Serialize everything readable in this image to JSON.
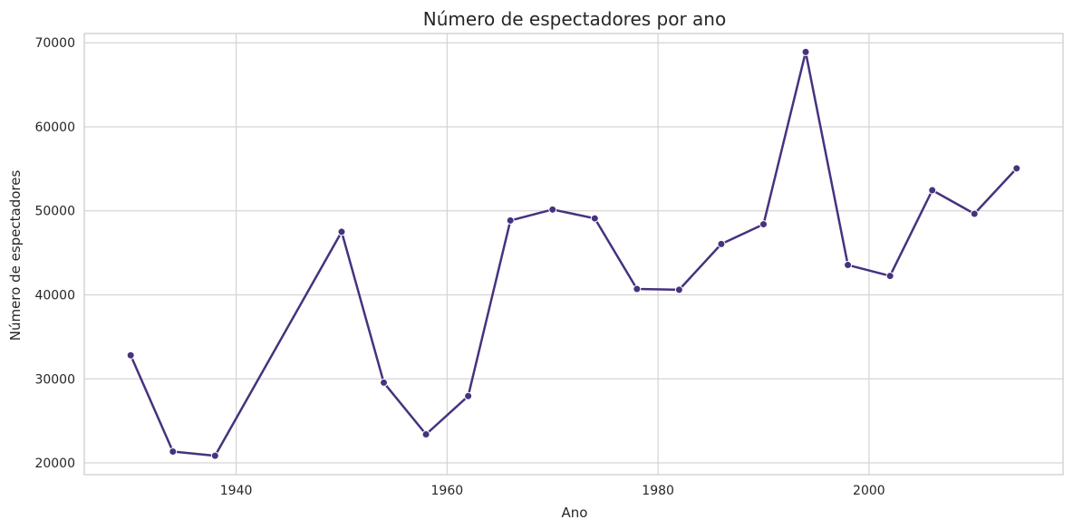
{
  "chart_data": {
    "type": "line",
    "title": "Número de espectadores por ano",
    "xlabel": "Ano",
    "ylabel": "Número de espectadores",
    "xlim": [
      1925.6,
      2018.4
    ],
    "ylim": [
      18600,
      71100
    ],
    "xticks": [
      1940,
      1960,
      1980,
      2000
    ],
    "yticks": [
      20000,
      30000,
      40000,
      50000,
      60000,
      70000
    ],
    "grid": true,
    "colors": {
      "line": "#46327e",
      "grid": "#d5d5d5",
      "frame": "#cccccc"
    },
    "series": [
      {
        "x": [
          1930,
          1934,
          1938,
          1950,
          1954,
          1958,
          1962,
          1966,
          1970,
          1974,
          1978,
          1982,
          1986,
          1990,
          1994,
          1998,
          2002,
          2006,
          2010,
          2014
        ],
        "y": [
          32800,
          21350,
          20850,
          47500,
          29550,
          23400,
          27950,
          48850,
          50150,
          49100,
          40700,
          40600,
          46050,
          48400,
          68900,
          43550,
          42250,
          52450,
          49650,
          55050
        ]
      }
    ]
  }
}
